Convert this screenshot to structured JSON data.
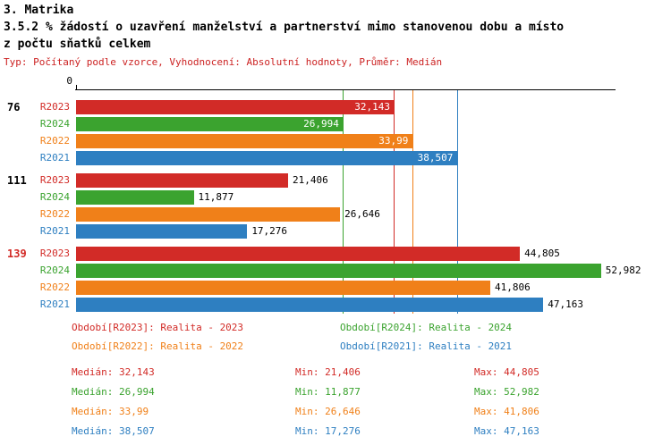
{
  "header": {
    "title": "3. Matrika",
    "subtitle_lines": [
      "3.5.2 % žádostí o uzavření manželství a partnerství mimo stanovenou dobu a místo",
      "z počtu sňatků celkem"
    ],
    "meta": "Typ: Počítaný podle vzorce, Vyhodnocení: Absolutní hodnoty, Průměr: Medián"
  },
  "colors": {
    "R2023": "#d22b27",
    "R2024": "#3ba32f",
    "R2022": "#f08019",
    "R2021": "#2e7fc1",
    "meta_text": "#cc2222",
    "axis": "#000000"
  },
  "chart_data": {
    "type": "bar",
    "orientation": "horizontal",
    "title": "3. Matrika",
    "subtitle": "3.5.2 % žádostí o uzavření manželství a partnerství mimo stanovenou dobu a místo z počtu sňatků celkem",
    "value_unit": "%",
    "axis": {
      "min": 0,
      "max": 54,
      "ticks": [
        {
          "value": 0,
          "label": "0"
        }
      ],
      "grid": false
    },
    "series_order": [
      "R2023",
      "R2024",
      "R2022",
      "R2021"
    ],
    "groups": [
      {
        "label": "76",
        "label_color": "#000000",
        "bars": [
          {
            "series": "R2023",
            "value": 32.143,
            "display": "32,143",
            "label_inside": true
          },
          {
            "series": "R2024",
            "value": 26.994,
            "display": "26,994",
            "label_inside": true
          },
          {
            "series": "R2022",
            "value": 33.99,
            "display": "33,99",
            "label_inside": true
          },
          {
            "series": "R2021",
            "value": 38.507,
            "display": "38,507",
            "label_inside": true
          }
        ]
      },
      {
        "label": "111",
        "label_color": "#000000",
        "bars": [
          {
            "series": "R2023",
            "value": 21.406,
            "display": "21,406",
            "label_inside": false
          },
          {
            "series": "R2024",
            "value": 11.877,
            "display": "11,877",
            "label_inside": false
          },
          {
            "series": "R2022",
            "value": 26.646,
            "display": "26,646",
            "label_inside": false
          },
          {
            "series": "R2021",
            "value": 17.276,
            "display": "17,276",
            "label_inside": false
          }
        ]
      },
      {
        "label": "139",
        "label_color": "#d22b27",
        "bars": [
          {
            "series": "R2023",
            "value": 44.805,
            "display": "44,805",
            "label_inside": false
          },
          {
            "series": "R2024",
            "value": 52.982,
            "display": "52,982",
            "label_inside": false
          },
          {
            "series": "R2022",
            "value": 41.806,
            "display": "41,806",
            "label_inside": false
          },
          {
            "series": "R2021",
            "value": 47.163,
            "display": "47,163",
            "label_inside": false
          }
        ]
      }
    ],
    "median_lines": [
      {
        "series": "R2023",
        "value": 32.143
      },
      {
        "series": "R2024",
        "value": 26.994
      },
      {
        "series": "R2022",
        "value": 33.99
      },
      {
        "series": "R2021",
        "value": 38.507
      }
    ]
  },
  "legend": [
    {
      "series": "R2023",
      "text": "Období[R2023]: Realita - 2023"
    },
    {
      "series": "R2024",
      "text": "Období[R2024]: Realita - 2024"
    },
    {
      "series": "R2022",
      "text": "Období[R2022]: Realita - 2022"
    },
    {
      "series": "R2021",
      "text": "Období[R2021]: Realita - 2021"
    }
  ],
  "stats_rows": [
    {
      "series": "R2023",
      "median": "Medián: 32,143",
      "min": "Min: 21,406",
      "max": "Max: 44,805"
    },
    {
      "series": "R2024",
      "median": "Medián: 26,994",
      "min": "Min: 11,877",
      "max": "Max: 52,982"
    },
    {
      "series": "R2022",
      "median": "Medián: 33,99",
      "min": "Min: 26,646",
      "max": "Max: 41,806"
    },
    {
      "series": "R2021",
      "median": "Medián: 38,507",
      "min": "Min: 17,276",
      "max": "Max: 47,163"
    }
  ]
}
